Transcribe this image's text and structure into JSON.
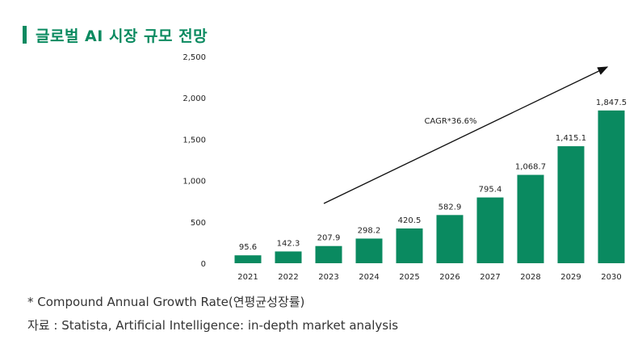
{
  "header": {
    "title": "글로벌 AI 시장 규모 전망"
  },
  "chart_data": {
    "type": "bar",
    "title": "글로벌 AI 시장 규모 전망",
    "categories": [
      "2021",
      "2022",
      "2023",
      "2024",
      "2025",
      "2026",
      "2027",
      "2028",
      "2029",
      "2030"
    ],
    "values": [
      95.6,
      142.3,
      207.9,
      298.2,
      420.5,
      582.9,
      795.4,
      1068.7,
      1415.1,
      1847.5
    ],
    "value_labels": [
      "95.6",
      "142.3",
      "207.9",
      "298.2",
      "420.5",
      "582.9",
      "795.4",
      "1,068.7",
      "1,415.1",
      "1,847.5"
    ],
    "y_ticks": [
      0,
      500,
      1000,
      1500,
      2000,
      2500
    ],
    "y_tick_labels": [
      "0",
      "500",
      "1,000",
      "1,500",
      "2,000",
      "2,500"
    ],
    "ylim": [
      0,
      2500
    ],
    "xlabel": "",
    "ylabel": "",
    "grid": false,
    "bar_color": "#0a8a60",
    "annotation": {
      "text": "CAGR*36.6%"
    }
  },
  "notes": {
    "footnote": "* Compound Annual Growth Rate(연평균성장률)",
    "source": "자료 : Statista, Artificial Intelligence: in-depth market analysis"
  }
}
